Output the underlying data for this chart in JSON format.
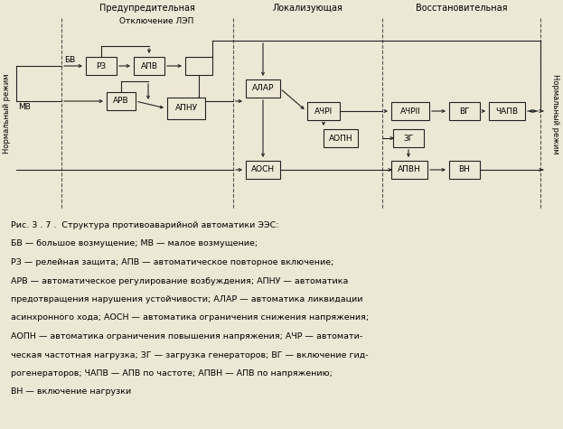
{
  "bg": "#ede8d5",
  "ec": "#222222",
  "lc": "#222222",
  "sec1": "Предупредительная",
  "sec2": "Локализующая",
  "sec3": "Восстановительная",
  "sub1": "Отключение ЛЭП",
  "lbl_l": "Нормальный режим",
  "lbl_r": "Нормальный режим",
  "bv": "БВ",
  "mv": "МВ",
  "caption": [
    "Рис. 3 . 7 .  Структура противоаварийной автоматики ЭЭС:",
    "БВ — большое возмущение; МВ — малое возмущение;",
    "РЗ — релейная защита; АПВ — автоматическое повторное включение;",
    "АРВ — автоматическое регулирование возбуждения; АПНУ — автоматика",
    "предотвращения нарушения устойчивости; АЛАР — автоматика ликвидации",
    "асинхронного хода; АОСН — автоматика ограничения снижения напряжения;",
    "АОПН — автоматика ограничения повышения напряжения; АЧР — автомати-",
    "ческая частотная нагрузка; ЗГ — загрузка генераторов; ВГ — включение гид-",
    "рогенераторов; ЧАПВ — АПВ по частоте; АПВН — АПВ по напряжению;",
    "ВН — включение нагрузки"
  ]
}
